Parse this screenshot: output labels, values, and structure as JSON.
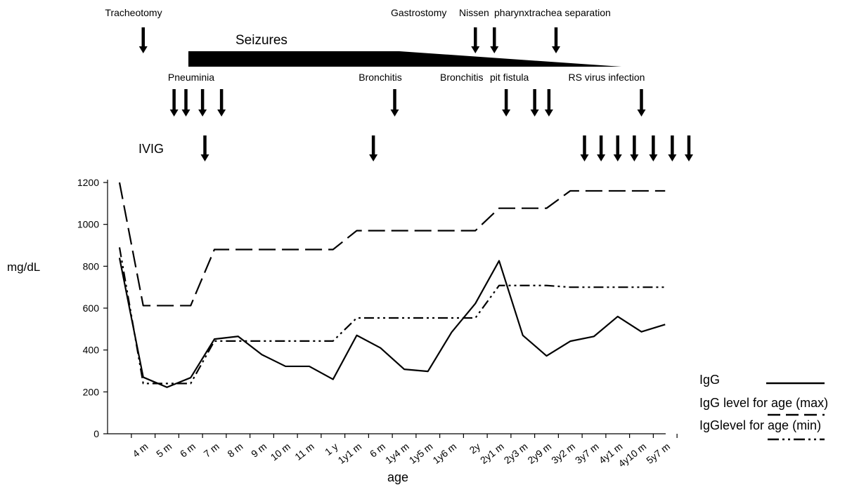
{
  "chart_data": {
    "type": "line",
    "ylabel": "mg/dL",
    "xlabel": "age",
    "ylim": [
      0,
      1200
    ],
    "yticks": [
      0,
      200,
      400,
      600,
      800,
      1000,
      1200
    ],
    "categories": [
      "",
      "4 m",
      "5 m",
      "6 m",
      "7 m",
      "8 m",
      "9 m",
      "10 m",
      "11 m",
      "1 y",
      "1y1 m",
      "6 m",
      "1y4 m",
      "1y5 m",
      "1y6 m",
      "2y",
      "2y1 m",
      "2y3 m",
      "2y9 m",
      "3y2 m",
      "3y7 m",
      "4y1 m",
      "4y10 m",
      "5y7 m"
    ],
    "series": [
      {
        "name": "IgG",
        "style": "solid",
        "values": [
          840,
          270,
          222,
          268,
          452,
          465,
          378,
          322,
          322,
          260,
          470,
          410,
          308,
          298,
          485,
          622,
          826,
          470,
          372,
          442,
          465,
          560,
          487,
          522
        ]
      },
      {
        "name": "IgG level for age (max)",
        "style": "dashed",
        "values": [
          1200,
          612,
          612,
          612,
          880,
          880,
          880,
          880,
          880,
          880,
          970,
          970,
          970,
          970,
          970,
          970,
          1077,
          1077,
          1077,
          1160,
          1160,
          1160,
          1160,
          1160
        ]
      },
      {
        "name": "IgGlevel for age (min)",
        "style": "dashdotdot",
        "values": [
          890,
          240,
          240,
          240,
          443,
          443,
          443,
          443,
          443,
          443,
          553,
          553,
          553,
          553,
          553,
          553,
          708,
          708,
          708,
          700,
          700,
          700,
          700,
          700
        ]
      }
    ],
    "legend_position": "bottom-right"
  },
  "annotations": {
    "events_top": [
      {
        "label": "Tracheotomy",
        "arrows": [
          1.0
        ]
      },
      {
        "label": "Gastrostomy",
        "arrows": [
          15.0,
          15.8
        ]
      },
      {
        "label": "Nissen",
        "arrows": []
      },
      {
        "label": "pharynxtrachea separation",
        "arrows": [
          18.4
        ]
      }
    ],
    "seizures_label": "Seizures",
    "infections": [
      {
        "label": "Pneuminia",
        "arrows": [
          2.3,
          2.8,
          3.5,
          4.3
        ]
      },
      {
        "label": "Bronchitis",
        "arrows": [
          11.6
        ]
      },
      {
        "label": "Bronchitis",
        "arrows": [
          16.3,
          17.5
        ]
      },
      {
        "label": "pit fistula",
        "arrows": [
          18.1
        ]
      },
      {
        "label": "RS virus infection",
        "arrows": [
          22.0
        ]
      }
    ],
    "ivig_label": "IVIG",
    "ivig_arrows": [
      3.6,
      10.7,
      19.6,
      20.3,
      21.0,
      21.7,
      22.5,
      23.3,
      24.0
    ]
  }
}
